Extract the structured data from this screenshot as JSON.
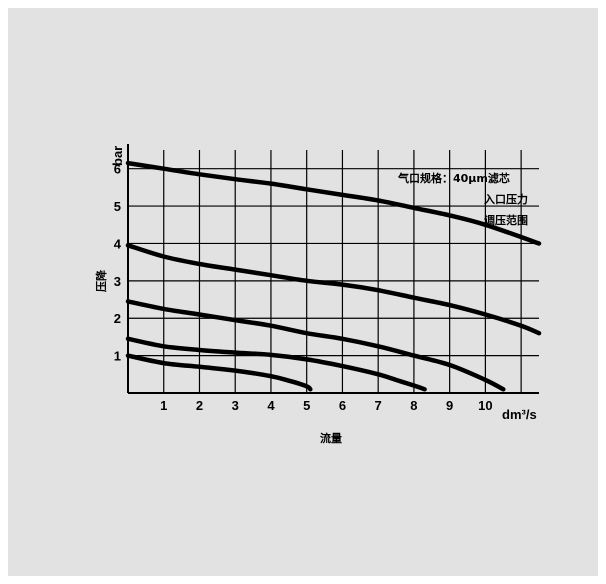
{
  "chart_data": {
    "type": "line",
    "xlabel": "流量",
    "xunit": "dm³/s",
    "ylabel": "压降",
    "yunit": "bar",
    "xlim": [
      0,
      11.5
    ],
    "ylim": [
      0,
      6.5
    ],
    "xticks": [
      "1",
      "2",
      "3",
      "4",
      "5",
      "6",
      "7",
      "8",
      "9",
      "10"
    ],
    "yticks": [
      "1",
      "2",
      "3",
      "4",
      "5",
      "6"
    ],
    "grid": true,
    "annotations": [
      "气口规格：40μm滤芯",
      "入口压力",
      "调压范围"
    ],
    "series": [
      {
        "x": [
          0,
          1,
          2,
          3,
          4,
          5,
          6,
          7,
          8,
          9,
          10,
          11.5
        ],
        "y": [
          6.15,
          6.0,
          5.85,
          5.72,
          5.6,
          5.45,
          5.3,
          5.15,
          4.95,
          4.75,
          4.5,
          4.0
        ]
      },
      {
        "x": [
          0,
          1,
          2,
          3,
          4,
          5,
          6,
          7,
          8,
          9,
          10,
          11,
          11.5
        ],
        "y": [
          3.95,
          3.65,
          3.45,
          3.3,
          3.15,
          3.0,
          2.9,
          2.75,
          2.55,
          2.35,
          2.1,
          1.8,
          1.6
        ]
      },
      {
        "x": [
          0,
          1,
          2,
          3,
          4,
          5,
          6,
          7,
          8,
          9,
          10,
          10.5
        ],
        "y": [
          2.45,
          2.25,
          2.1,
          1.95,
          1.8,
          1.6,
          1.45,
          1.25,
          1.0,
          0.75,
          0.35,
          0.1
        ]
      },
      {
        "x": [
          0,
          1,
          2,
          3,
          4,
          5,
          6,
          7,
          7.5,
          8,
          8.3
        ],
        "y": [
          1.45,
          1.25,
          1.15,
          1.08,
          1.02,
          0.9,
          0.72,
          0.5,
          0.35,
          0.2,
          0.1
        ]
      },
      {
        "x": [
          0,
          1,
          2,
          3,
          4,
          4.5,
          5,
          5.1
        ],
        "y": [
          1.0,
          0.8,
          0.7,
          0.6,
          0.45,
          0.33,
          0.18,
          0.1
        ]
      }
    ]
  }
}
